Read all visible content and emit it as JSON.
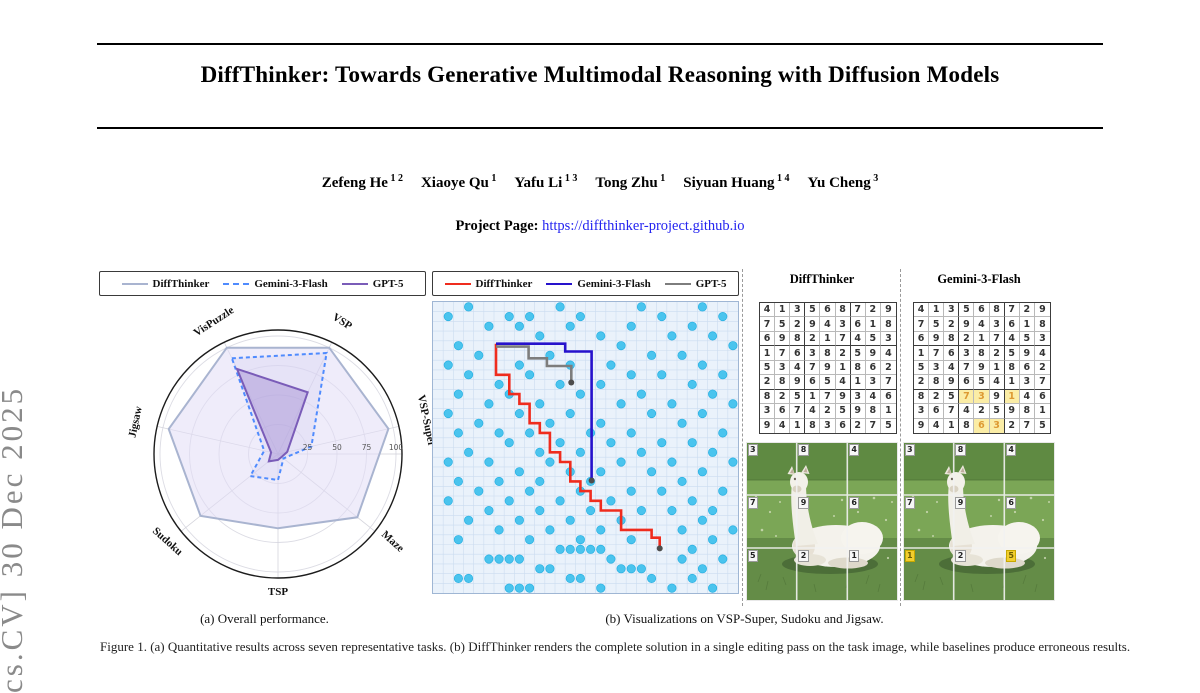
{
  "page": {
    "sidebar_text": "cs.CV] 30 Dec 2025",
    "title": "DiffThinker: Towards Generative Multimodal Reasoning with Diffusion Models",
    "authors": [
      {
        "name": "Zefeng He",
        "sup": "1 2"
      },
      {
        "name": "Xiaoye Qu",
        "sup": "1"
      },
      {
        "name": "Yafu Li",
        "sup": "1 3"
      },
      {
        "name": "Tong Zhu",
        "sup": "1"
      },
      {
        "name": "Siyuan Huang",
        "sup": "1 4"
      },
      {
        "name": "Yu Cheng",
        "sup": "3"
      }
    ],
    "project_page_label": "Project Page:",
    "project_page_url": "https://diffthinker-project.github.io",
    "caption_a": "(a) Overall performance.",
    "caption_b": "(b) Visualizations on VSP-Super, Sudoku and Jigsaw.",
    "figure_caption_clipped": "Figure 1. (a) Quantitative results across seven representative tasks. (b) DiffThinker renders the complete solution in a single editing pass on the task image, while baselines produce erroneous results."
  },
  "chart_data": [
    {
      "type": "radar",
      "title": "(a) Overall performance.",
      "categories": [
        "VisPuzzle",
        "VSP",
        "VSP-Super",
        "Maze",
        "TSP",
        "Sudoku",
        "Jigsaw"
      ],
      "radial_ticks": [
        25,
        50,
        75,
        100
      ],
      "rlim": [
        0,
        105
      ],
      "grid": true,
      "legend_position": "top",
      "series": [
        {
          "name": "DiffThinker",
          "color": "#a9b4d0",
          "fill": "rgba(225,221,246,0.55)",
          "dash": "solid",
          "values": [
            100,
            100,
            96,
            86,
            63,
            84,
            95
          ]
        },
        {
          "name": "Gemini-3-Flash",
          "color": "#4f8bfe",
          "fill": "rgba(205,200,240,0.25)",
          "dash": "dashed",
          "values": [
            90,
            95,
            29,
            6,
            22,
            30,
            12
          ]
        },
        {
          "name": "GPT-5",
          "color": "#7a5cb8",
          "fill": "rgba(167,148,213,0.5)",
          "dash": "solid",
          "values": [
            80,
            58,
            8,
            4,
            5,
            10,
            6
          ]
        }
      ]
    },
    {
      "type": "grid_paths",
      "title": "VSP-Super maze visualization",
      "grid_cols": 30,
      "grid_rows": 30,
      "background": "#eaf2fb",
      "obstacle_color": "#4ac4ee",
      "legend_position": "top",
      "legend": [
        {
          "name": "DiffThinker",
          "color": "#ef2c1e"
        },
        {
          "name": "Gemini-3-Flash",
          "color": "#2612cc"
        },
        {
          "name": "GPT-5",
          "color": "#7d7d7d"
        }
      ],
      "obstacles": [
        [
          3,
          0
        ],
        [
          12,
          0
        ],
        [
          20,
          0
        ],
        [
          26,
          0
        ],
        [
          1,
          1
        ],
        [
          7,
          1
        ],
        [
          9,
          1
        ],
        [
          14,
          1
        ],
        [
          22,
          1
        ],
        [
          28,
          1
        ],
        [
          5,
          2
        ],
        [
          8,
          2
        ],
        [
          13,
          2
        ],
        [
          19,
          2
        ],
        [
          25,
          2
        ],
        [
          10,
          3
        ],
        [
          16,
          3
        ],
        [
          23,
          3
        ],
        [
          27,
          3
        ],
        [
          2,
          4
        ],
        [
          18,
          4
        ],
        [
          29,
          4
        ],
        [
          4,
          5
        ],
        [
          11,
          5
        ],
        [
          21,
          5
        ],
        [
          24,
          5
        ],
        [
          1,
          6
        ],
        [
          8,
          6
        ],
        [
          13,
          6
        ],
        [
          17,
          6
        ],
        [
          26,
          6
        ],
        [
          3,
          7
        ],
        [
          9,
          7
        ],
        [
          19,
          7
        ],
        [
          22,
          7
        ],
        [
          28,
          7
        ],
        [
          6,
          8
        ],
        [
          12,
          8
        ],
        [
          16,
          8
        ],
        [
          25,
          8
        ],
        [
          2,
          9
        ],
        [
          7,
          9
        ],
        [
          14,
          9
        ],
        [
          20,
          9
        ],
        [
          27,
          9
        ],
        [
          5,
          10
        ],
        [
          10,
          10
        ],
        [
          18,
          10
        ],
        [
          23,
          10
        ],
        [
          29,
          10
        ],
        [
          1,
          11
        ],
        [
          8,
          11
        ],
        [
          13,
          11
        ],
        [
          21,
          11
        ],
        [
          26,
          11
        ],
        [
          4,
          12
        ],
        [
          11,
          12
        ],
        [
          16,
          12
        ],
        [
          24,
          12
        ],
        [
          2,
          13
        ],
        [
          6,
          13
        ],
        [
          9,
          13
        ],
        [
          15,
          13
        ],
        [
          19,
          13
        ],
        [
          28,
          13
        ],
        [
          7,
          14
        ],
        [
          12,
          14
        ],
        [
          17,
          14
        ],
        [
          22,
          14
        ],
        [
          25,
          14
        ],
        [
          3,
          15
        ],
        [
          10,
          15
        ],
        [
          14,
          15
        ],
        [
          20,
          15
        ],
        [
          27,
          15
        ],
        [
          1,
          16
        ],
        [
          5,
          16
        ],
        [
          11,
          16
        ],
        [
          18,
          16
        ],
        [
          23,
          16
        ],
        [
          29,
          16
        ],
        [
          8,
          17
        ],
        [
          13,
          17
        ],
        [
          16,
          17
        ],
        [
          21,
          17
        ],
        [
          26,
          17
        ],
        [
          2,
          18
        ],
        [
          6,
          18
        ],
        [
          10,
          18
        ],
        [
          15,
          18
        ],
        [
          24,
          18
        ],
        [
          4,
          19
        ],
        [
          9,
          19
        ],
        [
          14,
          19
        ],
        [
          19,
          19
        ],
        [
          22,
          19
        ],
        [
          28,
          19
        ],
        [
          1,
          20
        ],
        [
          7,
          20
        ],
        [
          12,
          20
        ],
        [
          17,
          20
        ],
        [
          25,
          20
        ],
        [
          5,
          21
        ],
        [
          10,
          21
        ],
        [
          15,
          21
        ],
        [
          20,
          21
        ],
        [
          23,
          21
        ],
        [
          27,
          21
        ],
        [
          3,
          22
        ],
        [
          8,
          22
        ],
        [
          13,
          22
        ],
        [
          18,
          22
        ],
        [
          26,
          22
        ],
        [
          6,
          23
        ],
        [
          11,
          23
        ],
        [
          16,
          23
        ],
        [
          24,
          23
        ],
        [
          29,
          23
        ],
        [
          2,
          24
        ],
        [
          9,
          24
        ],
        [
          14,
          24
        ],
        [
          19,
          24
        ],
        [
          27,
          24
        ],
        [
          12,
          25
        ],
        [
          13,
          25
        ],
        [
          14,
          25
        ],
        [
          15,
          25
        ],
        [
          16,
          25
        ],
        [
          25,
          25
        ],
        [
          5,
          26
        ],
        [
          6,
          26
        ],
        [
          7,
          26
        ],
        [
          8,
          26
        ],
        [
          17,
          26
        ],
        [
          24,
          26
        ],
        [
          28,
          26
        ],
        [
          10,
          27
        ],
        [
          11,
          27
        ],
        [
          18,
          27
        ],
        [
          19,
          27
        ],
        [
          20,
          27
        ],
        [
          26,
          27
        ],
        [
          2,
          28
        ],
        [
          3,
          28
        ],
        [
          13,
          28
        ],
        [
          14,
          28
        ],
        [
          21,
          28
        ],
        [
          25,
          28
        ],
        [
          7,
          29
        ],
        [
          8,
          29
        ],
        [
          9,
          29
        ],
        [
          16,
          29
        ],
        [
          23,
          29
        ],
        [
          27,
          29
        ]
      ],
      "paths": [
        {
          "name": "DiffThinker",
          "color": "#ef2c1e",
          "points": [
            [
              6.2,
              4.3
            ],
            [
              6.2,
              7.5
            ],
            [
              7.5,
              7.5
            ],
            [
              7.5,
              9.5
            ],
            [
              8.5,
              9.5
            ],
            [
              8.5,
              10.5
            ],
            [
              9.5,
              10.5
            ],
            [
              9.5,
              12.5
            ],
            [
              10.5,
              12.5
            ],
            [
              10.5,
              13.5
            ],
            [
              11.5,
              13.5
            ],
            [
              11.5,
              15.5
            ],
            [
              12.5,
              15.5
            ],
            [
              12.5,
              16.5
            ],
            [
              13.5,
              16.5
            ],
            [
              13.5,
              18.5
            ],
            [
              14.5,
              18.5
            ],
            [
              14.5,
              19.5
            ],
            [
              15.5,
              19.5
            ],
            [
              15.5,
              20.5
            ],
            [
              16.5,
              20.5
            ],
            [
              16.5,
              21.5
            ],
            [
              18.5,
              21.5
            ],
            [
              18.5,
              23.5
            ],
            [
              21.5,
              23.5
            ],
            [
              21.5,
              24.3
            ],
            [
              22.3,
              24.3
            ],
            [
              22.3,
              25.4
            ]
          ]
        },
        {
          "name": "Gemini-3-Flash",
          "color": "#2612cc",
          "points": [
            [
              6.2,
              4.3
            ],
            [
              13,
              4.3
            ],
            [
              13,
              5.1
            ],
            [
              15.6,
              5.1
            ],
            [
              15.6,
              18.4
            ]
          ]
        },
        {
          "name": "GPT-5",
          "color": "#7d7d7d",
          "points": [
            [
              6.2,
              4.6
            ],
            [
              9.4,
              4.6
            ],
            [
              9.4,
              5.8
            ],
            [
              11.2,
              5.8
            ],
            [
              11.2,
              6.6
            ],
            [
              13.6,
              6.6
            ],
            [
              13.6,
              8.3
            ]
          ]
        }
      ],
      "end_marker_color": "#4d4d4d"
    }
  ],
  "right_panel": {
    "columns": [
      {
        "title": "DiffThinker",
        "sudoku": [
          [
            4,
            1,
            3,
            5,
            6,
            8,
            7,
            2,
            9
          ],
          [
            7,
            5,
            2,
            9,
            4,
            3,
            6,
            1,
            8
          ],
          [
            6,
            9,
            8,
            2,
            1,
            7,
            4,
            5,
            3
          ],
          [
            1,
            7,
            6,
            3,
            8,
            2,
            5,
            9,
            4
          ],
          [
            5,
            3,
            4,
            7,
            9,
            1,
            8,
            6,
            2
          ],
          [
            2,
            8,
            9,
            6,
            5,
            4,
            1,
            3,
            7
          ],
          [
            8,
            2,
            5,
            1,
            7,
            9,
            3,
            4,
            6
          ],
          [
            3,
            6,
            7,
            4,
            2,
            5,
            9,
            8,
            1
          ],
          [
            9,
            4,
            1,
            8,
            3,
            6,
            2,
            7,
            5
          ]
        ],
        "sudoku_highlights": [],
        "jigsaw_labels": [
          [
            3,
            8,
            4
          ],
          [
            7,
            9,
            6
          ],
          [
            5,
            2,
            1
          ]
        ],
        "jigsaw_highlights": []
      },
      {
        "title": "Gemini-3-Flash",
        "sudoku": [
          [
            4,
            1,
            3,
            5,
            6,
            8,
            7,
            2,
            9
          ],
          [
            7,
            5,
            2,
            9,
            4,
            3,
            6,
            1,
            8
          ],
          [
            6,
            9,
            8,
            2,
            1,
            7,
            4,
            5,
            3
          ],
          [
            1,
            7,
            6,
            3,
            8,
            2,
            5,
            9,
            4
          ],
          [
            5,
            3,
            4,
            7,
            9,
            1,
            8,
            6,
            2
          ],
          [
            2,
            8,
            9,
            6,
            5,
            4,
            1,
            3,
            7
          ],
          [
            8,
            2,
            5,
            7,
            3,
            9,
            1,
            4,
            6
          ],
          [
            3,
            6,
            7,
            4,
            2,
            5,
            9,
            8,
            1
          ],
          [
            9,
            4,
            1,
            8,
            6,
            3,
            2,
            7,
            5
          ]
        ],
        "sudoku_highlights": [
          [
            6,
            3
          ],
          [
            6,
            4
          ],
          [
            6,
            6
          ],
          [
            8,
            4
          ],
          [
            8,
            5
          ]
        ],
        "jigsaw_labels": [
          [
            3,
            8,
            4
          ],
          [
            7,
            9,
            6
          ],
          [
            1,
            2,
            5
          ]
        ],
        "jigsaw_highlights": [
          [
            2,
            0
          ],
          [
            2,
            2
          ]
        ]
      }
    ]
  }
}
